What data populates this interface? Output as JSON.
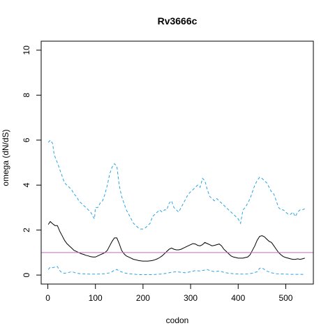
{
  "chart_data": {
    "type": "line",
    "title": "Rv3666c",
    "xlabel": "codon",
    "ylabel": "omega (dN/dS)",
    "xlim": [
      -14,
      558
    ],
    "ylim": [
      -0.4,
      10.4
    ],
    "xticks": [
      0,
      100,
      200,
      300,
      400,
      500
    ],
    "yticks": [
      0,
      2,
      4,
      6,
      8,
      10
    ],
    "grid": false,
    "reference_line": {
      "y": 1,
      "color": "#cc66cc"
    },
    "series": [
      {
        "color": "#29a3e6",
        "dash": "dashed",
        "x": [
          1,
          5,
          10,
          13,
          16,
          20,
          25,
          30,
          35,
          40,
          45,
          50,
          55,
          60,
          65,
          70,
          75,
          80,
          85,
          90,
          95,
          98,
          100,
          105,
          110,
          115,
          120,
          125,
          130,
          135,
          140,
          145,
          150,
          155,
          160,
          165,
          170,
          175,
          180,
          185,
          190,
          195,
          200,
          205,
          210,
          215,
          220,
          225,
          230,
          235,
          240,
          245,
          250,
          255,
          260,
          265,
          270,
          275,
          280,
          285,
          290,
          295,
          300,
          305,
          310,
          315,
          320,
          325,
          330,
          335,
          340,
          345,
          350,
          355,
          360,
          365,
          370,
          375,
          380,
          385,
          390,
          395,
          400,
          405,
          410,
          415,
          420,
          425,
          430,
          435,
          440,
          445,
          450,
          455,
          460,
          465,
          470,
          475,
          480,
          485,
          490,
          495,
          500,
          505,
          510,
          515,
          520,
          525,
          530,
          535,
          540
        ],
        "y": [
          5.9,
          6.0,
          5.85,
          5.4,
          5.2,
          5.0,
          4.7,
          4.4,
          4.1,
          4.0,
          3.9,
          3.8,
          3.6,
          3.5,
          3.3,
          3.2,
          3.1,
          3.0,
          2.9,
          2.8,
          2.6,
          2.5,
          3.0,
          3.0,
          3.2,
          3.3,
          3.6,
          4.0,
          4.5,
          4.8,
          4.95,
          4.85,
          4.0,
          3.5,
          3.2,
          2.9,
          2.7,
          2.5,
          2.3,
          2.2,
          2.1,
          2.05,
          2.05,
          2.1,
          2.2,
          2.3,
          2.6,
          2.7,
          2.8,
          2.9,
          2.8,
          2.9,
          2.9,
          3.2,
          3.3,
          3.0,
          2.9,
          2.8,
          3.0,
          3.2,
          3.4,
          3.6,
          3.7,
          3.8,
          3.9,
          4.0,
          3.9,
          4.3,
          4.2,
          3.8,
          3.5,
          3.4,
          3.3,
          3.4,
          3.3,
          3.2,
          3.1,
          3.0,
          2.9,
          2.8,
          2.7,
          2.6,
          2.5,
          2.3,
          2.9,
          3.0,
          3.2,
          3.4,
          3.7,
          4.0,
          4.2,
          4.35,
          4.3,
          4.2,
          4.1,
          3.9,
          3.7,
          3.6,
          3.3,
          3.0,
          2.9,
          2.9,
          2.8,
          2.7,
          2.7,
          2.8,
          2.6,
          2.8,
          2.9,
          2.9,
          2.95
        ]
      },
      {
        "color": "#000000",
        "dash": "solid",
        "x": [
          1,
          5,
          10,
          15,
          20,
          25,
          30,
          35,
          40,
          45,
          50,
          55,
          60,
          65,
          70,
          75,
          80,
          85,
          90,
          95,
          100,
          105,
          110,
          115,
          120,
          125,
          130,
          135,
          140,
          145,
          150,
          155,
          160,
          165,
          170,
          175,
          180,
          185,
          190,
          195,
          200,
          205,
          210,
          215,
          220,
          225,
          230,
          235,
          240,
          245,
          250,
          255,
          260,
          265,
          270,
          275,
          280,
          285,
          290,
          295,
          300,
          305,
          310,
          315,
          320,
          325,
          330,
          335,
          340,
          345,
          350,
          355,
          360,
          365,
          370,
          375,
          380,
          385,
          390,
          395,
          400,
          405,
          410,
          415,
          420,
          425,
          430,
          435,
          440,
          445,
          450,
          455,
          460,
          465,
          470,
          475,
          480,
          485,
          490,
          495,
          500,
          505,
          510,
          515,
          520,
          525,
          530,
          535,
          540
        ],
        "y": [
          2.25,
          2.38,
          2.28,
          2.2,
          2.2,
          1.95,
          1.75,
          1.55,
          1.4,
          1.3,
          1.2,
          1.1,
          1.05,
          1.0,
          0.95,
          0.92,
          0.88,
          0.85,
          0.82,
          0.8,
          0.8,
          0.85,
          0.9,
          0.95,
          1.0,
          1.1,
          1.3,
          1.5,
          1.65,
          1.65,
          1.4,
          1.1,
          0.95,
          0.85,
          0.8,
          0.75,
          0.7,
          0.68,
          0.65,
          0.63,
          0.62,
          0.62,
          0.62,
          0.63,
          0.65,
          0.68,
          0.72,
          0.78,
          0.85,
          0.95,
          1.05,
          1.15,
          1.2,
          1.15,
          1.12,
          1.12,
          1.15,
          1.2,
          1.25,
          1.3,
          1.35,
          1.4,
          1.38,
          1.32,
          1.3,
          1.35,
          1.45,
          1.4,
          1.35,
          1.3,
          1.32,
          1.35,
          1.38,
          1.3,
          1.15,
          1.05,
          0.95,
          0.85,
          0.8,
          0.78,
          0.75,
          0.75,
          0.75,
          0.78,
          0.8,
          0.9,
          1.1,
          1.3,
          1.55,
          1.72,
          1.75,
          1.7,
          1.6,
          1.5,
          1.45,
          1.3,
          1.15,
          1.0,
          0.9,
          0.82,
          0.78,
          0.75,
          0.72,
          0.7,
          0.7,
          0.72,
          0.7,
          0.72,
          0.75
        ]
      },
      {
        "color": "#29a3e6",
        "dash": "dashed",
        "x": [
          1,
          5,
          10,
          15,
          20,
          25,
          30,
          35,
          40,
          45,
          50,
          55,
          60,
          70,
          80,
          90,
          100,
          110,
          120,
          130,
          135,
          140,
          145,
          150,
          160,
          170,
          180,
          190,
          200,
          210,
          220,
          230,
          240,
          250,
          260,
          270,
          280,
          290,
          300,
          310,
          320,
          330,
          335,
          340,
          350,
          360,
          370,
          380,
          390,
          400,
          410,
          420,
          430,
          440,
          445,
          450,
          455,
          460,
          470,
          480,
          490,
          500,
          510,
          520,
          530,
          540
        ],
        "y": [
          0.25,
          0.35,
          0.33,
          0.35,
          0.38,
          0.2,
          0.1,
          0.08,
          0.1,
          0.12,
          0.15,
          0.12,
          0.08,
          0.06,
          0.05,
          0.04,
          0.04,
          0.05,
          0.06,
          0.1,
          0.15,
          0.22,
          0.25,
          0.18,
          0.1,
          0.06,
          0.04,
          0.02,
          0.02,
          0.02,
          0.02,
          0.03,
          0.05,
          0.08,
          0.12,
          0.15,
          0.12,
          0.1,
          0.15,
          0.2,
          0.18,
          0.22,
          0.25,
          0.2,
          0.15,
          0.18,
          0.12,
          0.08,
          0.06,
          0.05,
          0.04,
          0.05,
          0.08,
          0.15,
          0.3,
          0.32,
          0.25,
          0.18,
          0.1,
          0.06,
          0.05,
          0.04,
          0.03,
          0.03,
          0.03,
          0.03
        ]
      }
    ]
  }
}
